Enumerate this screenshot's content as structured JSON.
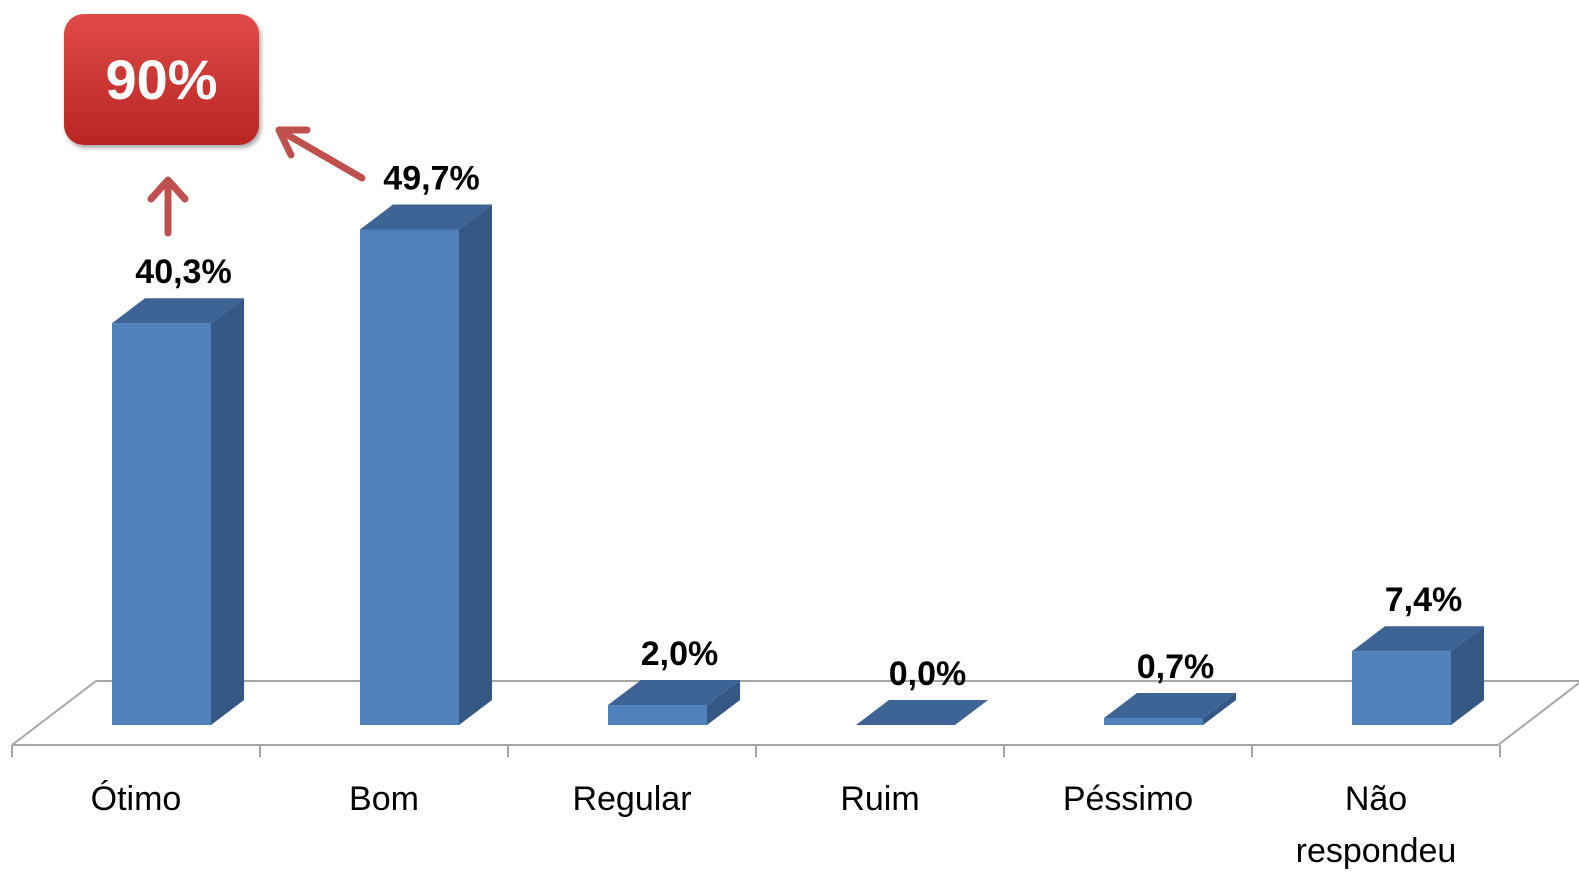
{
  "chart_data": {
    "type": "bar",
    "categories": [
      "Ótimo",
      "Bom",
      "Regular",
      "Ruim",
      "Péssimo",
      "Não respondeu"
    ],
    "category_lines": [
      [
        "Ótimo"
      ],
      [
        "Bom"
      ],
      [
        "Regular"
      ],
      [
        "Ruim"
      ],
      [
        "Péssimo"
      ],
      [
        "Não",
        "respondeu"
      ]
    ],
    "values": [
      40.3,
      49.7,
      2.0,
      0.0,
      0.7,
      7.4
    ],
    "data_labels": [
      "40,3%",
      "49,7%",
      "2,0%",
      "0,0%",
      "0,7%",
      "7,4%"
    ],
    "title": "",
    "xlabel": "",
    "ylabel": "",
    "ylim": [
      0,
      50
    ],
    "grid": false,
    "legend": "none",
    "bar_color": "#4f81bd",
    "bar_side_color": "#355786",
    "bar_top_color": "#3d6495"
  },
  "callout": {
    "text": "90%",
    "color": "#c0302d",
    "arrow_color": "#c0504d"
  }
}
